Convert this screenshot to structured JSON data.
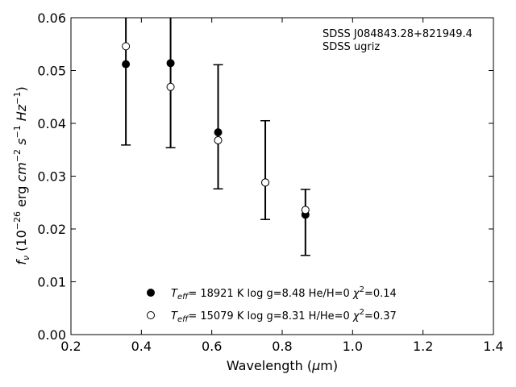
{
  "chart_data": {
    "type": "scatter",
    "annotations": [
      "SDSS J084843.28+821949.4",
      "SDSS ugriz"
    ],
    "xlabel": "Wavelength (μm)",
    "ylabel": "f_ν (10^-26 erg cm^-2 s^-1 Hz^-1)",
    "xlim": [
      0.2,
      1.4
    ],
    "ylim": [
      0.0,
      0.06
    ],
    "xticks": [
      0.2,
      0.4,
      0.6,
      0.8,
      1.0,
      1.2,
      1.4
    ],
    "yticks": [
      0.0,
      0.01,
      0.02,
      0.03,
      0.04,
      0.05,
      0.06
    ],
    "x_tick_labels": [
      "0.2",
      "0.4",
      "0.6",
      "0.8",
      "1.0",
      "1.2",
      "1.4"
    ],
    "y_tick_labels": [
      "0.00",
      "0.01",
      "0.02",
      "0.03",
      "0.04",
      "0.05",
      "0.06"
    ],
    "grid": false,
    "legend_position": "bottom-center",
    "series": [
      {
        "name": "Teff= 18921 K  log g=8.48  He/H=0  χ²=0.14",
        "marker": "filled-circle",
        "color": "#000000",
        "x": [
          0.356,
          0.483,
          0.618,
          0.752,
          0.866
        ],
        "y": [
          0.0512,
          0.0514,
          0.0383,
          0.0288,
          0.0227
        ]
      },
      {
        "name": "Teff= 15079 K  log g=8.31  H/He=0  χ²=0.37",
        "marker": "open-circle",
        "color": "#000000",
        "x": [
          0.356,
          0.483,
          0.618,
          0.752,
          0.866
        ],
        "y": [
          0.0546,
          0.0469,
          0.0368,
          0.0288,
          0.0236
        ]
      }
    ],
    "observed": {
      "x": [
        0.356,
        0.483,
        0.618,
        0.752,
        0.866
      ],
      "y_low": [
        0.0359,
        0.0354,
        0.0276,
        0.0218,
        0.015
      ],
      "y_high": [
        0.066,
        0.066,
        0.0511,
        0.0405,
        0.0275
      ]
    }
  }
}
